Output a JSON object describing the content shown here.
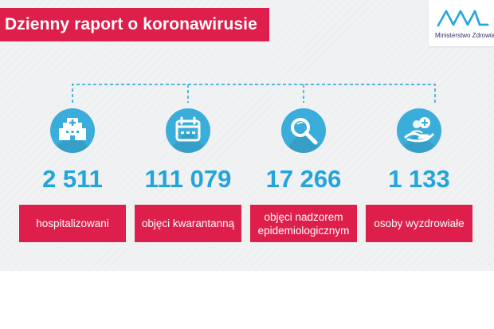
{
  "header": {
    "title": "Dzienny raport o koronawirusie"
  },
  "logo": {
    "text": "Ministerstwo Zdrowia"
  },
  "stats": [
    {
      "value": "2 511",
      "label": "hospitalizowani",
      "icon": "hospital-icon"
    },
    {
      "value": "111 079",
      "label": "objęci kwarantanną",
      "icon": "calendar-icon"
    },
    {
      "value": "17 266",
      "label": "objęci nadzorem epidemiologicznym",
      "icon": "magnifier-icon"
    },
    {
      "value": "1 133",
      "label": "osoby wyzdrowiałe",
      "icon": "hand-care-icon"
    }
  ],
  "colors": {
    "accent_red": "#de1f4b",
    "accent_blue": "#23a4db",
    "panel_gray": "#eef0f1"
  }
}
